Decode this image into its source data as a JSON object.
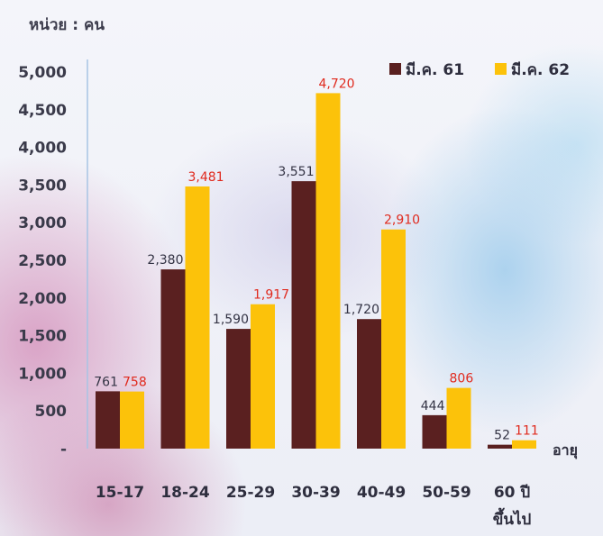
{
  "unit_label": "หน่วย : คน",
  "chart_data": {
    "type": "bar",
    "title": "",
    "xlabel": "อายุ",
    "ylabel": "หน่วย : คน",
    "ylim": [
      0,
      5000
    ],
    "yticks": [
      0,
      500,
      1000,
      1500,
      2000,
      2500,
      3000,
      3500,
      4000,
      4500,
      5000
    ],
    "ytick_labels": [
      "-",
      "500",
      "1,000",
      "1,500",
      "2,000",
      "2,500",
      "3,000",
      "3,500",
      "4,000",
      "4,500",
      "5,000"
    ],
    "categories": [
      "15-17",
      "18-24",
      "25-29",
      "30-39",
      "40-49",
      "50-59",
      "60 ปี ขึ้นไป"
    ],
    "category_lines": [
      [
        "15-17"
      ],
      [
        "18-24"
      ],
      [
        "25-29"
      ],
      [
        "30-39"
      ],
      [
        "40-49"
      ],
      [
        "50-59"
      ],
      [
        "60 ปี",
        "ขึ้นไป"
      ]
    ],
    "series": [
      {
        "name": "มี.ค. 61",
        "color": "#5a2020",
        "label_color": "#333344",
        "values": [
          761,
          2380,
          1590,
          3551,
          1720,
          444,
          52
        ],
        "labels": [
          "761",
          "2,380",
          "1,590",
          "3,551",
          "1,720",
          "444",
          "52"
        ]
      },
      {
        "name": "มี.ค. 62",
        "color": "#fcc20a",
        "label_color": "#e02a1e",
        "values": [
          758,
          3481,
          1917,
          4720,
          2910,
          806,
          111
        ],
        "labels": [
          "758",
          "3,481",
          "1,917",
          "4,720",
          "2,910",
          "806",
          "111"
        ]
      }
    ],
    "legend_position": "top-right",
    "grid": false
  }
}
